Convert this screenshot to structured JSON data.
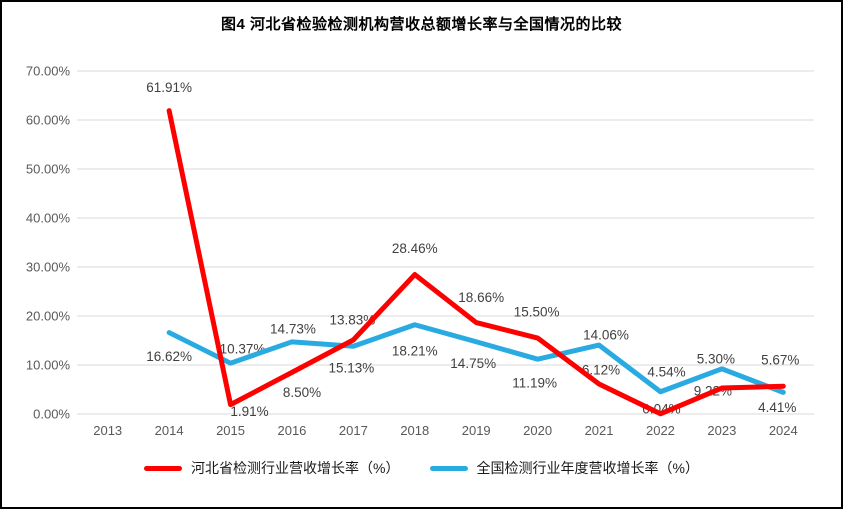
{
  "figure": {
    "background": "#ffffff",
    "border_color": "#000000"
  },
  "chart_data": {
    "type": "line",
    "title": "图4  河北省检验检测机构营收总额增长率与全国情况的比较",
    "xlabel": "",
    "ylabel": "",
    "categories": [
      "2013",
      "2014",
      "2015",
      "2016",
      "2017",
      "2018",
      "2019",
      "2020",
      "2021",
      "2022",
      "2023",
      "2024"
    ],
    "y_axis": {
      "min": 0,
      "max": 70,
      "ticks": [
        "70.00%",
        "60.00%",
        "50.00%",
        "40.00%",
        "30.00%",
        "20.00%",
        "10.00%",
        "0.00%"
      ],
      "tick_values": [
        70,
        60,
        50,
        40,
        30,
        20,
        10,
        0
      ],
      "grid": true
    },
    "legend": {
      "position": "bottom"
    },
    "series": [
      {
        "name": "河北省检测行业营收增长率（%）",
        "color": "#FF0000",
        "start_index": 1,
        "values": [
          61.91,
          1.91,
          8.5,
          15.13,
          28.46,
          18.66,
          15.5,
          6.12,
          0.04,
          5.3,
          5.67
        ],
        "labels": [
          "61.91%",
          "1.91%",
          "8.50%",
          "15.13%",
          "28.46%",
          "18.66%",
          "15.50%",
          "6.12%",
          "0.04%",
          "5.30%",
          "5.67%"
        ],
        "label_offsets": [
          [
            0,
            -23
          ],
          [
            19,
            7
          ],
          [
            10,
            20
          ],
          [
            -2,
            28
          ],
          [
            0,
            -26
          ],
          [
            5,
            -25
          ],
          [
            -1,
            -26
          ],
          [
            2,
            -14
          ],
          [
            1,
            -5
          ],
          [
            -6,
            -29
          ],
          [
            -3,
            -26
          ]
        ]
      },
      {
        "name": "全国检测行业年度营收增长率（%）",
        "color": "#29ABE2",
        "start_index": 1,
        "values": [
          16.62,
          10.37,
          14.73,
          13.83,
          18.21,
          14.75,
          11.19,
          14.06,
          4.54,
          9.22,
          4.41
        ],
        "labels": [
          "16.62%",
          "10.37%",
          "14.73%",
          "13.83%",
          "18.21%",
          "14.75%",
          "11.19%",
          "14.06%",
          "4.54%",
          "9.22%",
          "4.41%"
        ],
        "label_offsets": [
          [
            0,
            24
          ],
          [
            12,
            -14
          ],
          [
            1,
            -13
          ],
          [
            -1,
            -26
          ],
          [
            0,
            26
          ],
          [
            -3,
            22
          ],
          [
            -3,
            24
          ],
          [
            7,
            -10
          ],
          [
            6,
            -20
          ],
          [
            -9,
            22
          ],
          [
            -6,
            15
          ]
        ]
      }
    ],
    "colors": {
      "grid": "#D9D9D9",
      "axis_text": "#595959",
      "label_text": "#404040",
      "title_text": "#000000"
    }
  }
}
